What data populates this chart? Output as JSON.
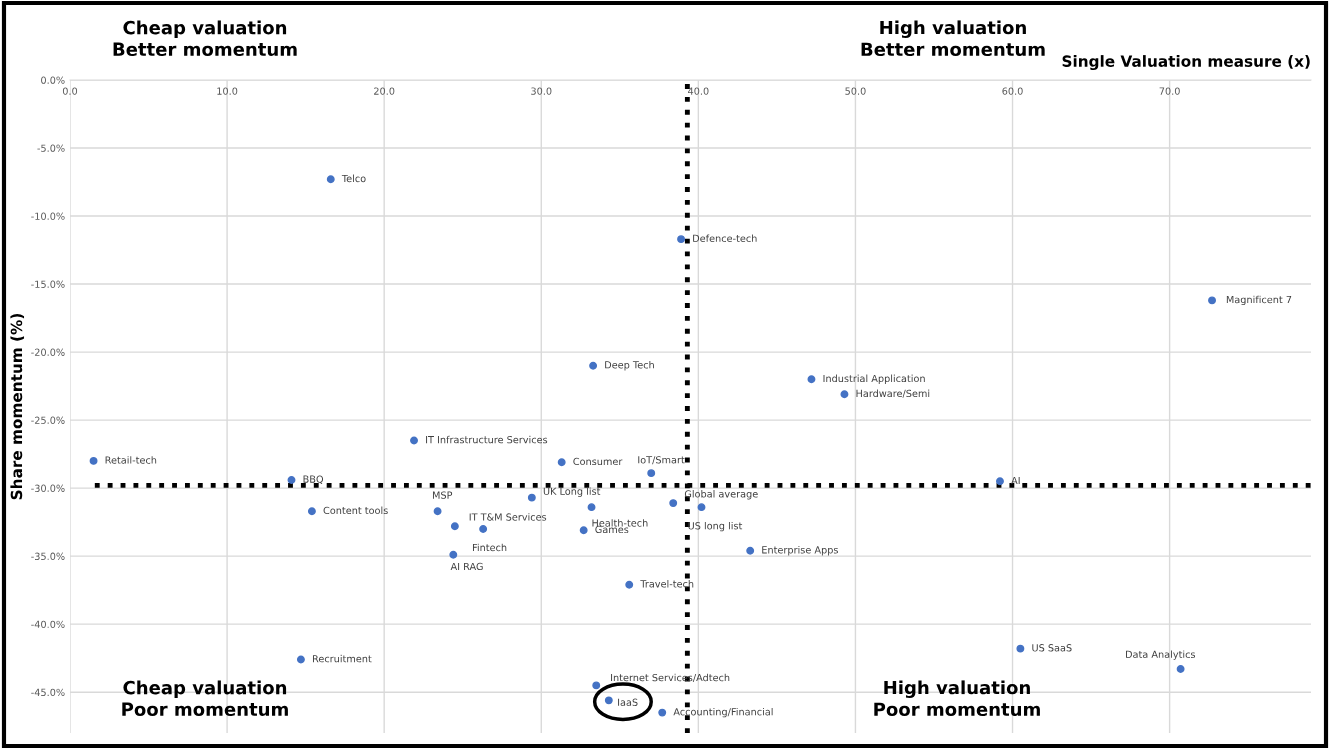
{
  "chart_data": {
    "type": "scatter",
    "xlabel": "Single Valuation measure (x)",
    "ylabel": "Share momentum (%)",
    "xlim": [
      0,
      79
    ],
    "ylim": [
      -48,
      0
    ],
    "xticks": [
      {
        "value": 0,
        "label": "0.0"
      },
      {
        "value": 10,
        "label": "10.0"
      },
      {
        "value": 20,
        "label": "20.0"
      },
      {
        "value": 30,
        "label": "30.0"
      },
      {
        "value": 40,
        "label": "40.0"
      },
      {
        "value": 50,
        "label": "50.0"
      },
      {
        "value": 60,
        "label": "60.0"
      },
      {
        "value": 70,
        "label": "70.0"
      }
    ],
    "yticks": [
      {
        "value": 0,
        "label": "0.0%"
      },
      {
        "value": -5,
        "label": "-5.0%"
      },
      {
        "value": -10,
        "label": "-10.0%"
      },
      {
        "value": -15,
        "label": "-15.0%"
      },
      {
        "value": -20,
        "label": "-20.0%"
      },
      {
        "value": -25,
        "label": "-25.0%"
      },
      {
        "value": -30,
        "label": "-30.0%"
      },
      {
        "value": -35,
        "label": "-35.0%"
      },
      {
        "value": -40,
        "label": "-40.0%"
      },
      {
        "value": -45,
        "label": "-45.0%"
      }
    ],
    "grid": true,
    "marker": "circle",
    "series": [
      {
        "color": "#4472c4",
        "x": [
          16.6,
          38.9,
          72.7,
          33.3,
          47.2,
          49.3,
          21.9,
          1.5,
          31.3,
          37.0,
          14.1,
          59.2,
          29.4,
          38.4,
          40.2,
          15.4,
          23.4,
          33.2,
          24.5,
          26.3,
          32.7,
          43.3,
          24.4,
          35.6,
          14.7,
          60.5,
          70.7,
          33.5,
          34.3,
          37.7
        ],
        "values": [
          -7.3,
          -11.7,
          -16.2,
          -21.0,
          -22.0,
          -23.1,
          -26.5,
          -28.0,
          -28.1,
          -28.9,
          -29.4,
          -29.5,
          -30.7,
          -31.1,
          -31.4,
          -31.7,
          -31.7,
          -31.4,
          -32.8,
          -33.0,
          -33.1,
          -34.6,
          -34.9,
          -37.1,
          -42.6,
          -41.8,
          -43.3,
          -44.5,
          -45.6,
          -46.5
        ],
        "value_labels": [
          "Telco",
          "Defence-tech",
          "Magnificent 7",
          "Deep Tech",
          "Industrial Application",
          "Hardware/Semi",
          "IT Infrastructure Services",
          "Retail-tech",
          "Consumer",
          "IoT/Smart",
          "BBQ",
          "AI",
          "UK Long list",
          "Global average",
          "US long list",
          "Content tools",
          "MSP",
          "Health-tech",
          "IT T&M Services",
          "Fintech",
          "Games",
          "Enterprise Apps",
          "AI RAG",
          "Travel-tech",
          "Recruitment",
          "US SaaS",
          "Data Analytics",
          "Internet Services/Adtech",
          "IaaS",
          "Accounting/Financial"
        ]
      }
    ],
    "ref_lines": [
      {
        "axis": "y",
        "value": -29.8,
        "color": "#000000",
        "line_style": "dotted"
      },
      {
        "axis": "x",
        "value": 39.3,
        "color": "#000000",
        "line_style": "dotted"
      }
    ],
    "annotations": [
      "Cheap valuation\nBetter momentum",
      "High valuation\nBetter momentum",
      "Cheap valuation\nPoor momentum",
      "High valuation\nPoor momentum"
    ]
  }
}
